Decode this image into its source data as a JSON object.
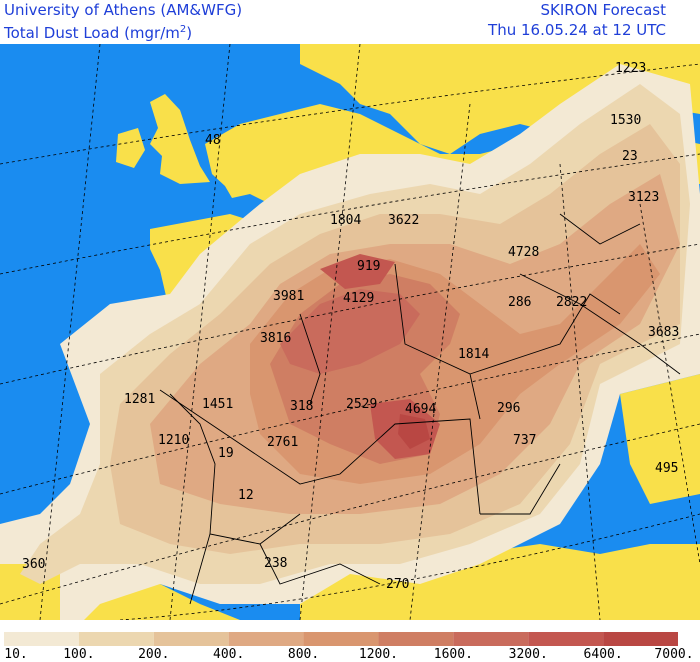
{
  "header": {
    "org": "University of Athens (AM&WFG)",
    "product": "SKIRON Forecast",
    "variable_prefix": "Total Dust Load (mgr/m",
    "variable_sup": "2",
    "variable_suffix": ")",
    "valid_time": "Thu 16.05.24 at 12 UTC"
  },
  "colors": {
    "sea": "#1a8cf0",
    "land_no_dust": "#f9e04a",
    "border": "#000000",
    "graticule": "#000000"
  },
  "legend": {
    "values": [
      "10.",
      "100.",
      "200.",
      "400.",
      "800.",
      "1200.",
      "1600.",
      "3200.",
      "6400.",
      "7000."
    ],
    "colors": [
      "#f3e9d4",
      "#ecd7b0",
      "#e5c39a",
      "#dfa983",
      "#d9966f",
      "#cf7e63",
      "#c96b5c",
      "#c35750",
      "#b94743"
    ]
  },
  "map_labels": [
    "1223",
    "1530",
    "23",
    "3123",
    "48",
    "1804",
    "3622",
    "919",
    "4728",
    "3981",
    "4129",
    "286",
    "2822",
    "3683",
    "3816",
    "1814",
    "1281",
    "1451",
    "318",
    "2529",
    "4694",
    "296",
    "1210",
    "2761",
    "737",
    "19",
    "495",
    "12",
    "360",
    "238",
    "270"
  ]
}
